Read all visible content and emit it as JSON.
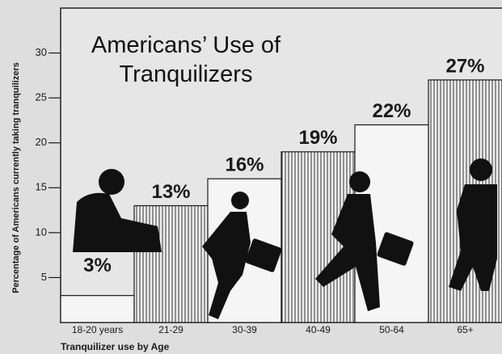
{
  "chart_data": {
    "type": "bar",
    "title": "Americans’ Use of Tranquilizers",
    "y_label": "Percentage of Americans currently taking tranquilizers",
    "x_label": "Tranquilizer use by Age",
    "categories": [
      "18-20 years",
      "21-29",
      "30-39",
      "40-49",
      "50-64",
      "65+"
    ],
    "values": [
      3,
      13,
      16,
      19,
      22,
      27
    ],
    "value_labels": [
      "3%",
      "13%",
      "16%",
      "19%",
      "22%",
      "27%"
    ],
    "color": "#1a1a1a",
    "ylim": [
      0,
      35
    ],
    "yticks": [
      5,
      10,
      15,
      20,
      25,
      30
    ]
  }
}
